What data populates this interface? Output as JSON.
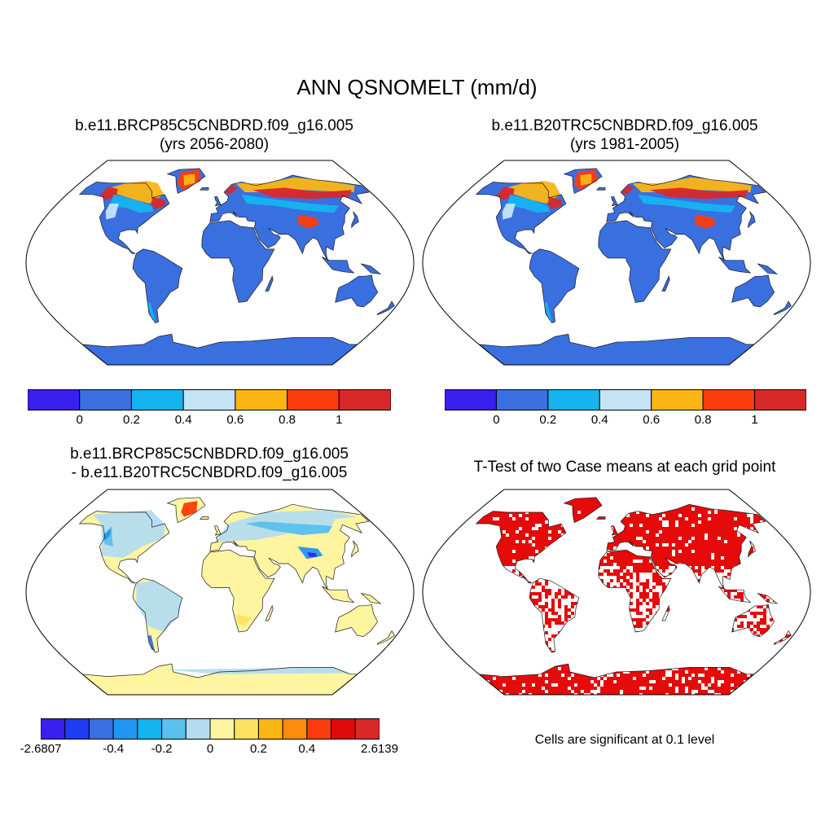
{
  "main_title": "ANN QSNOMELT (mm/d)",
  "panels": {
    "top_left": {
      "title_line1": "b.e11.BRCP85C5CNBDRD.f09_g16.005",
      "title_line2": "(yrs 2056-2080)"
    },
    "top_right": {
      "title_line1": "b.e11.B20TRC5CNBDRD.f09_g16.005",
      "title_line2": "(yrs 1981-2005)"
    },
    "bottom_left": {
      "title_line1": "b.e11.BRCP85C5CNBDRD.f09_g16.005",
      "title_line2": "- b.e11.B20TRC5CNBDRD.f09_g16.005"
    },
    "bottom_right": {
      "title_line1": "T-Test of two Case means at each grid point",
      "note": "Cells are significant at 0.1 level"
    }
  },
  "colorbar_top": {
    "colors": [
      "#3a1ff0",
      "#3a6fe0",
      "#14b4f0",
      "#c4e4f6",
      "#fbb515",
      "#fb3c0c",
      "#d92828"
    ],
    "tick_labels": [
      "0",
      "0.2",
      "0.4",
      "0.6",
      "0.8",
      "1"
    ]
  },
  "colorbar_bottom": {
    "colors": [
      "#3a1ff0",
      "#1e3cf0",
      "#3a6fe0",
      "#2196f0",
      "#14b4f0",
      "#5ac0ee",
      "#b4dcf0",
      "#fff5a0",
      "#fee060",
      "#fbb515",
      "#fb8c0c",
      "#fb3c0c",
      "#e10a0a",
      "#d92828"
    ],
    "tick_labels": [
      "-2.6807",
      "-0.4",
      "-0.2",
      "0",
      "0.2",
      "0.4",
      "2.6139"
    ]
  },
  "map_colors": {
    "ocean": "#ffffff",
    "top_land": "#3a6fe0",
    "diff_land": "#fff5a0",
    "ttest_sig": "#e60a0a"
  }
}
